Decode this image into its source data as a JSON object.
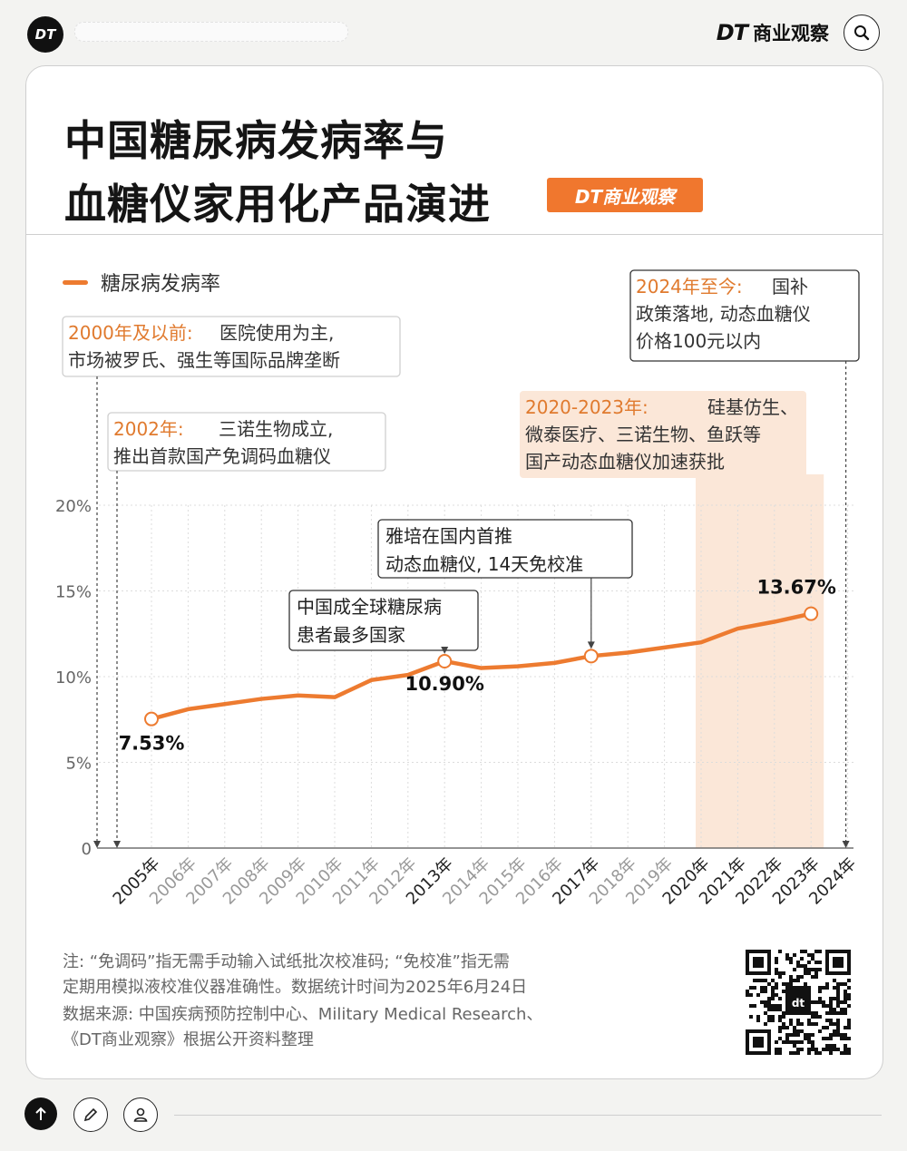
{
  "header": {
    "badge": "DT",
    "brand_dt": "DT",
    "brand_name": "商业观察"
  },
  "title": {
    "line1": "中国糖尿病发病率与",
    "line2": "血糖仪家用化产品演进",
    "tag": "DT商业观察"
  },
  "chart_data": {
    "type": "line",
    "title": "中国糖尿病发病率与血糖仪家用化产品演进",
    "legend": "糖尿病发病率",
    "legend_position": "top-left",
    "x": [
      "2005年",
      "2006年",
      "2007年",
      "2008年",
      "2009年",
      "2010年",
      "2011年",
      "2012年",
      "2013年",
      "2014年",
      "2015年",
      "2016年",
      "2017年",
      "2018年",
      "2019年",
      "2020年",
      "2021年",
      "2022年",
      "2023年",
      "2024年"
    ],
    "series": [
      {
        "name": "糖尿病发病率",
        "color": "#ed7b30",
        "values": [
          7.53,
          8.1,
          8.4,
          8.7,
          8.9,
          8.8,
          9.8,
          10.1,
          10.9,
          10.5,
          10.6,
          10.8,
          11.2,
          11.4,
          11.7,
          12.0,
          12.8,
          13.2,
          13.67,
          null
        ]
      }
    ],
    "ylim": [
      0,
      20
    ],
    "y_ticks": [
      "0",
      "5%",
      "10%",
      "15%",
      "20%"
    ],
    "grid": true,
    "highlight_range": [
      "2020年",
      "2023年"
    ],
    "highlight_color": "#fbe7d8",
    "data_labels": [
      {
        "x": "2005年",
        "text": "7.53%"
      },
      {
        "x": "2013年",
        "text": "10.90%"
      },
      {
        "x": "2023年",
        "text": "13.67%"
      }
    ],
    "marked_points": [
      "2005年",
      "2013年",
      "2017年",
      "2023年"
    ],
    "annotations": [
      {
        "id": "a2000",
        "period": "2000年及以前:",
        "text": [
          "医院使用为主,",
          "市场被罗氏、强生等国际品牌垄断"
        ]
      },
      {
        "id": "a2002",
        "period": "2002年:",
        "text": [
          "三诺生物成立,",
          "推出首款国产免调码血糖仪"
        ]
      },
      {
        "id": "a2013",
        "period": "",
        "text": [
          "中国成全球糖尿病",
          "患者最多国家"
        ]
      },
      {
        "id": "a2017",
        "period": "",
        "text": [
          "雅培在国内首推",
          "动态血糖仪, 14天免校准"
        ]
      },
      {
        "id": "a2020",
        "period": "2020-2023年:",
        "text": [
          "硅基仿生、",
          "微泰医疗、三诺生物、鱼跃等",
          "国产动态血糖仪加速获批"
        ]
      },
      {
        "id": "a2024",
        "period": "2024年至今:",
        "text": [
          "国补",
          "政策落地, 动态血糖仪",
          "价格100元以内"
        ]
      }
    ]
  },
  "notes": {
    "line1": "注: “免调码”指无需手动输入试纸批次校准码; “免校准”指无需",
    "line2": "定期用模拟液校准仪器准确性。数据统计时间为2025年6月24日",
    "line3": "数据来源: 中国疾病预防控制中心、Military Medical Research、",
    "line4": "《DT商业观察》根据公开资料整理"
  },
  "qr": {
    "center_label": "dt"
  }
}
